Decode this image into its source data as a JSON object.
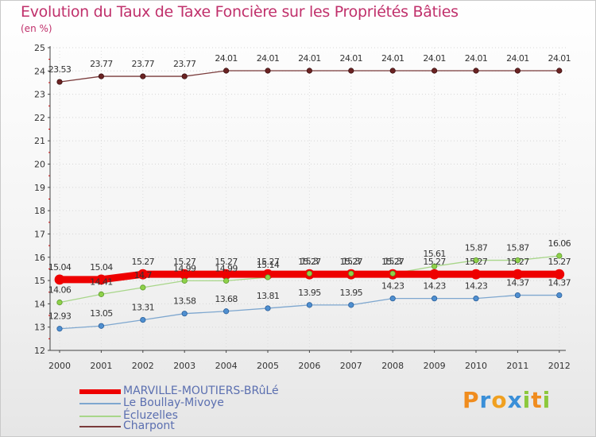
{
  "title": "Evolution du Taux de Taxe Foncière sur les Propriétés Bâties",
  "unit_label": "(en %)",
  "logo": {
    "letters": [
      "P",
      "r",
      "o",
      "x",
      "i",
      "t",
      "i"
    ],
    "colors": [
      "#f08c1e",
      "#3a8fd8",
      "#f0a020",
      "#3a8fd8",
      "#8cc83c",
      "#f08c1e",
      "#8cc83c"
    ]
  },
  "chart_data": {
    "type": "line",
    "title": "Evolution du Taux de Taxe Foncière sur les Propriétés Bâties",
    "ylabel": "(en %)",
    "xlabel": "",
    "categories": [
      "2000",
      "2001",
      "2002",
      "2003",
      "2004",
      "2005",
      "2006",
      "2007",
      "2008",
      "2009",
      "2010",
      "2011",
      "2012"
    ],
    "ylim": [
      12,
      25
    ],
    "yticks": [
      "12",
      "13",
      "14",
      "15",
      "16",
      "17",
      "18",
      "19",
      "20",
      "21",
      "22",
      "23",
      "24",
      "25"
    ],
    "series": [
      {
        "name": "MARVILLE-MOUTIERS-BRûLé",
        "color": "#ee0000",
        "width": 9,
        "marker": "#ee0000",
        "markerStroke": "#ee0000",
        "values": [
          15.04,
          15.04,
          15.27,
          15.27,
          15.27,
          15.27,
          15.27,
          15.27,
          15.27,
          15.27,
          15.27,
          15.27,
          15.27
        ],
        "labels": [
          "15.04",
          "15.04",
          "15.27",
          "15.27",
          "15.27",
          "15.27",
          "15.27",
          "15.27",
          "15.27",
          "15.27",
          "15.27",
          "15.27",
          "15.27"
        ]
      },
      {
        "name": "Le Boullay-Mivoye",
        "color": "#7ea7cf",
        "width": 1.3,
        "marker": "#4f8fd0",
        "markerStroke": "#2a5f9a",
        "values": [
          12.93,
          13.05,
          13.31,
          13.58,
          13.68,
          13.81,
          13.95,
          13.95,
          14.23,
          14.23,
          14.23,
          14.37,
          14.37
        ],
        "labels": [
          "12.93",
          "13.05",
          "13.31",
          "13.58",
          "13.68",
          "13.81",
          "13.95",
          "13.95",
          "14.23",
          "14.23",
          "14.23",
          "14.37",
          "14.37"
        ]
      },
      {
        "name": "Écluzelles",
        "color": "#a8d68a",
        "width": 1.3,
        "marker": "#8fd14a",
        "markerStroke": "#5a9a2a",
        "values": [
          14.06,
          14.41,
          14.7,
          14.99,
          14.99,
          15.14,
          15.3,
          15.3,
          15.3,
          15.61,
          15.87,
          15.87,
          16.06
        ],
        "labels": [
          "14.06",
          "14.41",
          "14.7",
          "14.99",
          "14.99",
          "15.14",
          "15.3",
          "15.3",
          "15.3",
          "15.61",
          "15.87",
          "15.87",
          "16.06"
        ]
      },
      {
        "name": "Charpont",
        "color": "#7a3b3b",
        "width": 1.3,
        "marker": "#6b2323",
        "markerStroke": "#3d1010",
        "values": [
          23.53,
          23.77,
          23.77,
          23.77,
          24.01,
          24.01,
          24.01,
          24.01,
          24.01,
          24.01,
          24.01,
          24.01,
          24.01
        ],
        "labels": [
          "23.53",
          "23.77",
          "23.77",
          "23.77",
          "24.01",
          "24.01",
          "24.01",
          "24.01",
          "24.01",
          "24.01",
          "24.01",
          "24.01",
          "24.01"
        ]
      }
    ]
  }
}
